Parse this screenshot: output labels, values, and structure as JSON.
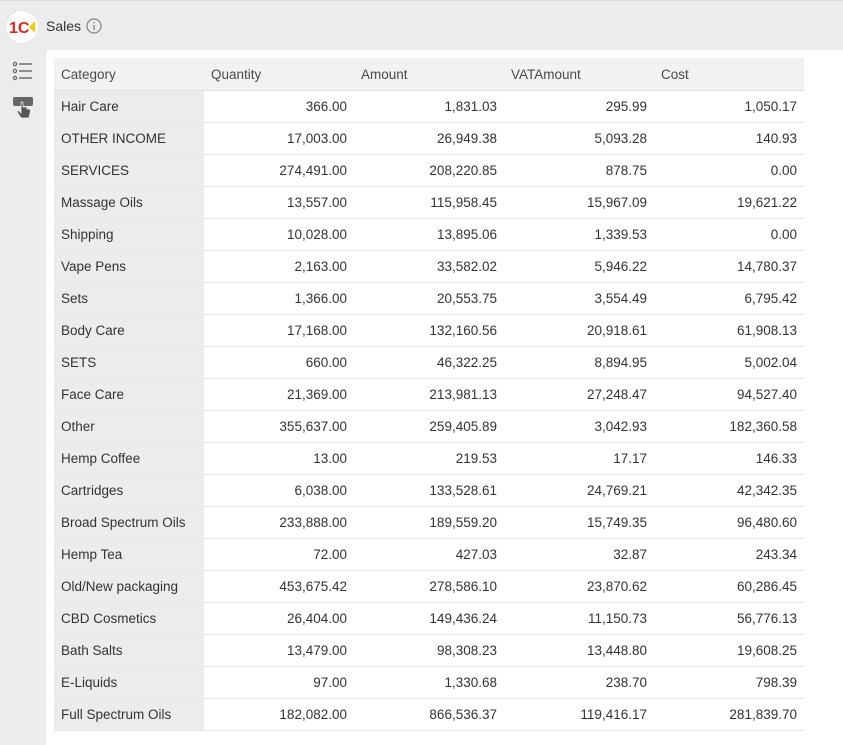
{
  "app": {
    "title": "Sales"
  },
  "columns": [
    "Category",
    "Quantity",
    "Amount",
    "VATAmount",
    "Cost"
  ],
  "rows": [
    {
      "category": "Hair Care",
      "quantity": "366.00",
      "amount": "1,831.03",
      "vat": "295.99",
      "cost": "1,050.17"
    },
    {
      "category": "OTHER INCOME",
      "quantity": "17,003.00",
      "amount": "26,949.38",
      "vat": "5,093.28",
      "cost": "140.93"
    },
    {
      "category": "SERVICES",
      "quantity": "274,491.00",
      "amount": "208,220.85",
      "vat": "878.75",
      "cost": "0.00"
    },
    {
      "category": "Massage Oils",
      "quantity": "13,557.00",
      "amount": "115,958.45",
      "vat": "15,967.09",
      "cost": "19,621.22"
    },
    {
      "category": "Shipping",
      "quantity": "10,028.00",
      "amount": "13,895.06",
      "vat": "1,339.53",
      "cost": "0.00"
    },
    {
      "category": "Vape Pens",
      "quantity": "2,163.00",
      "amount": "33,582.02",
      "vat": "5,946.22",
      "cost": "14,780.37"
    },
    {
      "category": "Sets",
      "quantity": "1,366.00",
      "amount": "20,553.75",
      "vat": "3,554.49",
      "cost": "6,795.42"
    },
    {
      "category": "Body Care",
      "quantity": "17,168.00",
      "amount": "132,160.56",
      "vat": "20,918.61",
      "cost": "61,908.13"
    },
    {
      "category": "SETS",
      "quantity": "660.00",
      "amount": "46,322.25",
      "vat": "8,894.95",
      "cost": "5,002.04"
    },
    {
      "category": "Face Care",
      "quantity": "21,369.00",
      "amount": "213,981.13",
      "vat": "27,248.47",
      "cost": "94,527.40"
    },
    {
      "category": "Other",
      "quantity": "355,637.00",
      "amount": "259,405.89",
      "vat": "3,042.93",
      "cost": "182,360.58"
    },
    {
      "category": "Hemp Coffee",
      "quantity": "13.00",
      "amount": "219.53",
      "vat": "17.17",
      "cost": "146.33"
    },
    {
      "category": "Cartridges",
      "quantity": "6,038.00",
      "amount": "133,528.61",
      "vat": "24,769.21",
      "cost": "42,342.35"
    },
    {
      "category": "Broad Spectrum Oils",
      "quantity": "233,888.00",
      "amount": "189,559.20",
      "vat": "15,749.35",
      "cost": "96,480.60"
    },
    {
      "category": "Hemp Tea",
      "quantity": "72.00",
      "amount": "427.03",
      "vat": "32.87",
      "cost": "243.34"
    },
    {
      "category": "Old/New packaging",
      "quantity": "453,675.42",
      "amount": "278,586.10",
      "vat": "23,870.62",
      "cost": "60,286.45"
    },
    {
      "category": "CBD Cosmetics",
      "quantity": "26,404.00",
      "amount": "149,436.24",
      "vat": "11,150.73",
      "cost": "56,776.13"
    },
    {
      "category": "Bath Salts",
      "quantity": "13,479.00",
      "amount": "98,308.23",
      "vat": "13,448.80",
      "cost": "19,608.25"
    },
    {
      "category": "E-Liquids",
      "quantity": "97.00",
      "amount": "1,330.68",
      "vat": "238.70",
      "cost": "798.39"
    },
    {
      "category": "Full Spectrum Oils",
      "quantity": "182,082.00",
      "amount": "866,536.37",
      "vat": "119,416.17",
      "cost": "281,839.70"
    }
  ],
  "icons": {
    "logo": "1c-logo-icon",
    "info": "info-icon",
    "side_list": "list-settings-icon",
    "side_hand": "pointer-hand-icon"
  },
  "colors": {
    "accent": "#e52421",
    "logo_yellow": "#f7c800"
  }
}
